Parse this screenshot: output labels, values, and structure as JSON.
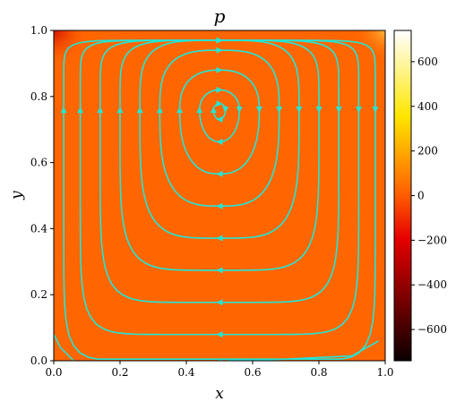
{
  "chart_data": {
    "type": "heatmap",
    "title": "p",
    "xlabel": "x",
    "ylabel": "y",
    "xlim": [
      0.0,
      1.0
    ],
    "ylim": [
      0.0,
      1.0
    ],
    "x_ticks": [
      "0.0",
      "0.2",
      "0.4",
      "0.6",
      "0.8",
      "1.0"
    ],
    "y_ticks": [
      "0.0",
      "0.2",
      "0.4",
      "0.6",
      "0.8",
      "1.0"
    ],
    "colorbar": {
      "colormap": "hot",
      "range": [
        -740,
        740
      ],
      "ticks": [
        600,
        400,
        200,
        0,
        -200,
        -400,
        -600
      ],
      "tick_labels": [
        "600",
        "400",
        "200",
        "0",
        "−200",
        "−400",
        "−600"
      ]
    },
    "field": {
      "background_value": 60,
      "background_color": "#ff6600",
      "corner_low": {
        "x": 0.0,
        "y": 1.0,
        "value": -150
      },
      "corner_high": {
        "x": 1.0,
        "y": 1.0,
        "value": 250
      }
    },
    "streamlines": {
      "color": "#22e6d6",
      "vortex_center": [
        0.5,
        0.76
      ],
      "direction": "clockwise",
      "loops": [
        {
          "r": 0.018
        },
        {
          "r": 0.06
        },
        {
          "r": 0.12
        },
        {
          "r": 0.18
        },
        {
          "r": 0.24
        },
        {
          "r": 0.3
        },
        {
          "r": 0.36
        },
        {
          "r": 0.42
        },
        {
          "r": 0.47
        }
      ],
      "extra_lines": [
        [
          [
            0.06,
            0.0
          ],
          [
            0.02,
            0.04
          ],
          [
            0.0,
            0.08
          ]
        ],
        [
          [
            0.52,
            0.0
          ],
          [
            0.7,
            0.005
          ],
          [
            0.9,
            0.015
          ],
          [
            0.98,
            0.06
          ]
        ]
      ]
    }
  }
}
